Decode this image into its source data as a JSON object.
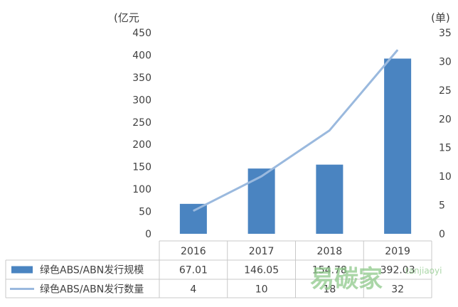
{
  "chart_data": {
    "type": "bar",
    "categories": [
      "2016",
      "2017",
      "2018",
      "2019"
    ],
    "series": [
      {
        "name": "绿色ABS/ABN发行规模",
        "type": "bar",
        "axis": "left",
        "values": [
          67.01,
          146.05,
          154.78,
          392.03
        ]
      },
      {
        "name": "绿色ABS/ABN发行数量",
        "type": "line",
        "axis": "right",
        "values": [
          4,
          10,
          18,
          32
        ]
      }
    ],
    "y_left": {
      "label": "(亿元",
      "ylim": [
        0,
        450
      ],
      "ticks": [
        "0",
        "50",
        "100",
        "150",
        "200",
        "250",
        "300",
        "350",
        "400",
        "450"
      ]
    },
    "y_right": {
      "label": "(单)",
      "ylim": [
        0,
        35
      ],
      "ticks": [
        "0",
        "5",
        "10",
        "15",
        "20",
        "25",
        "30",
        "35"
      ]
    },
    "table": {
      "rows": [
        {
          "label": "绿色ABS/ABN发行规模",
          "cells": [
            "67.01",
            "146.05",
            "154.78",
            "392.03"
          ]
        },
        {
          "label": "绿色ABS/ABN发行数量",
          "cells": [
            "4",
            "10",
            "18",
            "32"
          ]
        }
      ]
    },
    "grid": false,
    "legend": "table-bottom"
  },
  "colors": {
    "bar": "#4a84c1",
    "line": "#9ab9de",
    "axis_text": "#404040",
    "table_border": "#c8c8c8",
    "watermark": "#8ec98a"
  },
  "watermark": {
    "text": "易碳家",
    "sub": "tanjiaoyi"
  }
}
